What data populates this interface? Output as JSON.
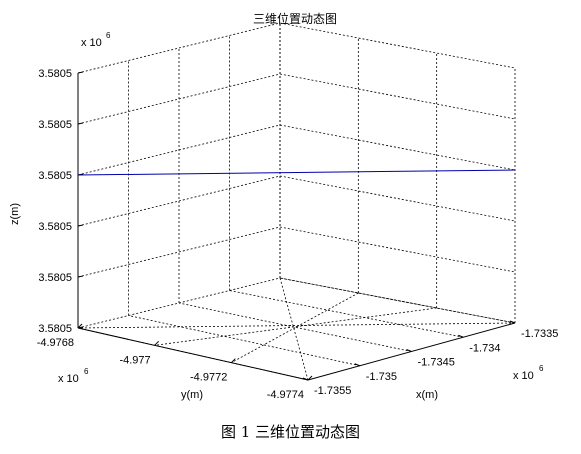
{
  "chart_data": {
    "type": "line",
    "projection": "3d",
    "title": "三维位置动态图",
    "xlabel": "x(m)",
    "ylabel": "y(m)",
    "zlabel": "z(m)",
    "x_ticks": [
      "-1.7355",
      "-1.735",
      "-1.7345",
      "-1.734",
      "-1.7335"
    ],
    "y_ticks": [
      "-4.9768",
      "-4.977",
      "-4.9772",
      "-4.9774"
    ],
    "z_ticks": [
      "3.5805",
      "3.5805",
      "3.5805",
      "3.5805",
      "3.5805",
      "3.5805"
    ],
    "x_multiplier": {
      "base": "x 10",
      "exp": "6"
    },
    "y_multiplier": {
      "base": "x 10",
      "exp": "6"
    },
    "z_multiplier": {
      "base": "x 10",
      "exp": "6"
    },
    "grid": true,
    "line_color": "#0000aa",
    "series": [
      {
        "x": [
          -1735500,
          -1733500
        ],
        "y": [
          -4976800,
          -4977400
        ],
        "z": [
          3580503,
          3580503
        ]
      }
    ],
    "xlim": [
      -1735500,
      -1733500
    ],
    "ylim": [
      -4976800,
      -4977400
    ],
    "zlim": [
      3580500,
      3580505
    ]
  },
  "caption": "图 1  三维位置动态图"
}
